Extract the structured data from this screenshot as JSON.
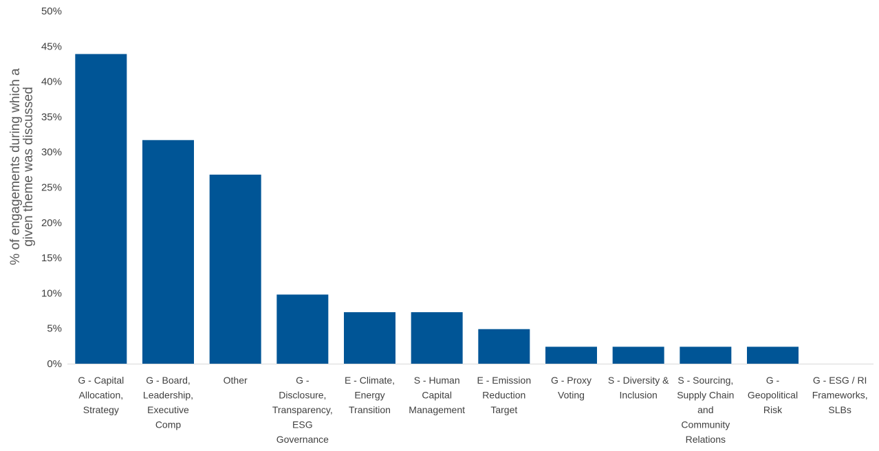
{
  "chart_data": {
    "type": "bar",
    "title": "",
    "xlabel": "",
    "ylabel_lines": [
      "% of engagements during which a",
      "given theme was discussed"
    ],
    "ylim": [
      0,
      50
    ],
    "yticks": [
      0,
      5,
      10,
      15,
      20,
      25,
      30,
      35,
      40,
      45,
      50
    ],
    "ytick_labels": [
      "0%",
      "5%",
      "10%",
      "15%",
      "20%",
      "25%",
      "30%",
      "35%",
      "40%",
      "45%",
      "50%"
    ],
    "grid": false,
    "bar_color": "#005596",
    "categories": [
      [
        "G - Capital",
        "Allocation,",
        "Strategy"
      ],
      [
        "G - Board,",
        "Leadership,",
        "Executive",
        "Comp"
      ],
      [
        "Other"
      ],
      [
        "G -",
        "Disclosure,",
        "Transparency,",
        "ESG",
        "Governance"
      ],
      [
        "E - Climate,",
        "Energy",
        "Transition"
      ],
      [
        "S - Human",
        "Capital",
        "Management"
      ],
      [
        "E - Emission",
        "Reduction",
        "Target"
      ],
      [
        "G - Proxy",
        "Voting"
      ],
      [
        "S - Diversity &",
        "Inclusion"
      ],
      [
        "S - Sourcing,",
        "Supply Chain",
        "and",
        "Community",
        "Relations"
      ],
      [
        "G -",
        "Geopolitical",
        "Risk"
      ],
      [
        "G - ESG / RI",
        "Frameworks,",
        "SLBs"
      ]
    ],
    "values": [
      43.9,
      31.7,
      26.8,
      9.8,
      7.3,
      7.3,
      4.9,
      2.4,
      2.4,
      2.4,
      2.4,
      0
    ]
  }
}
